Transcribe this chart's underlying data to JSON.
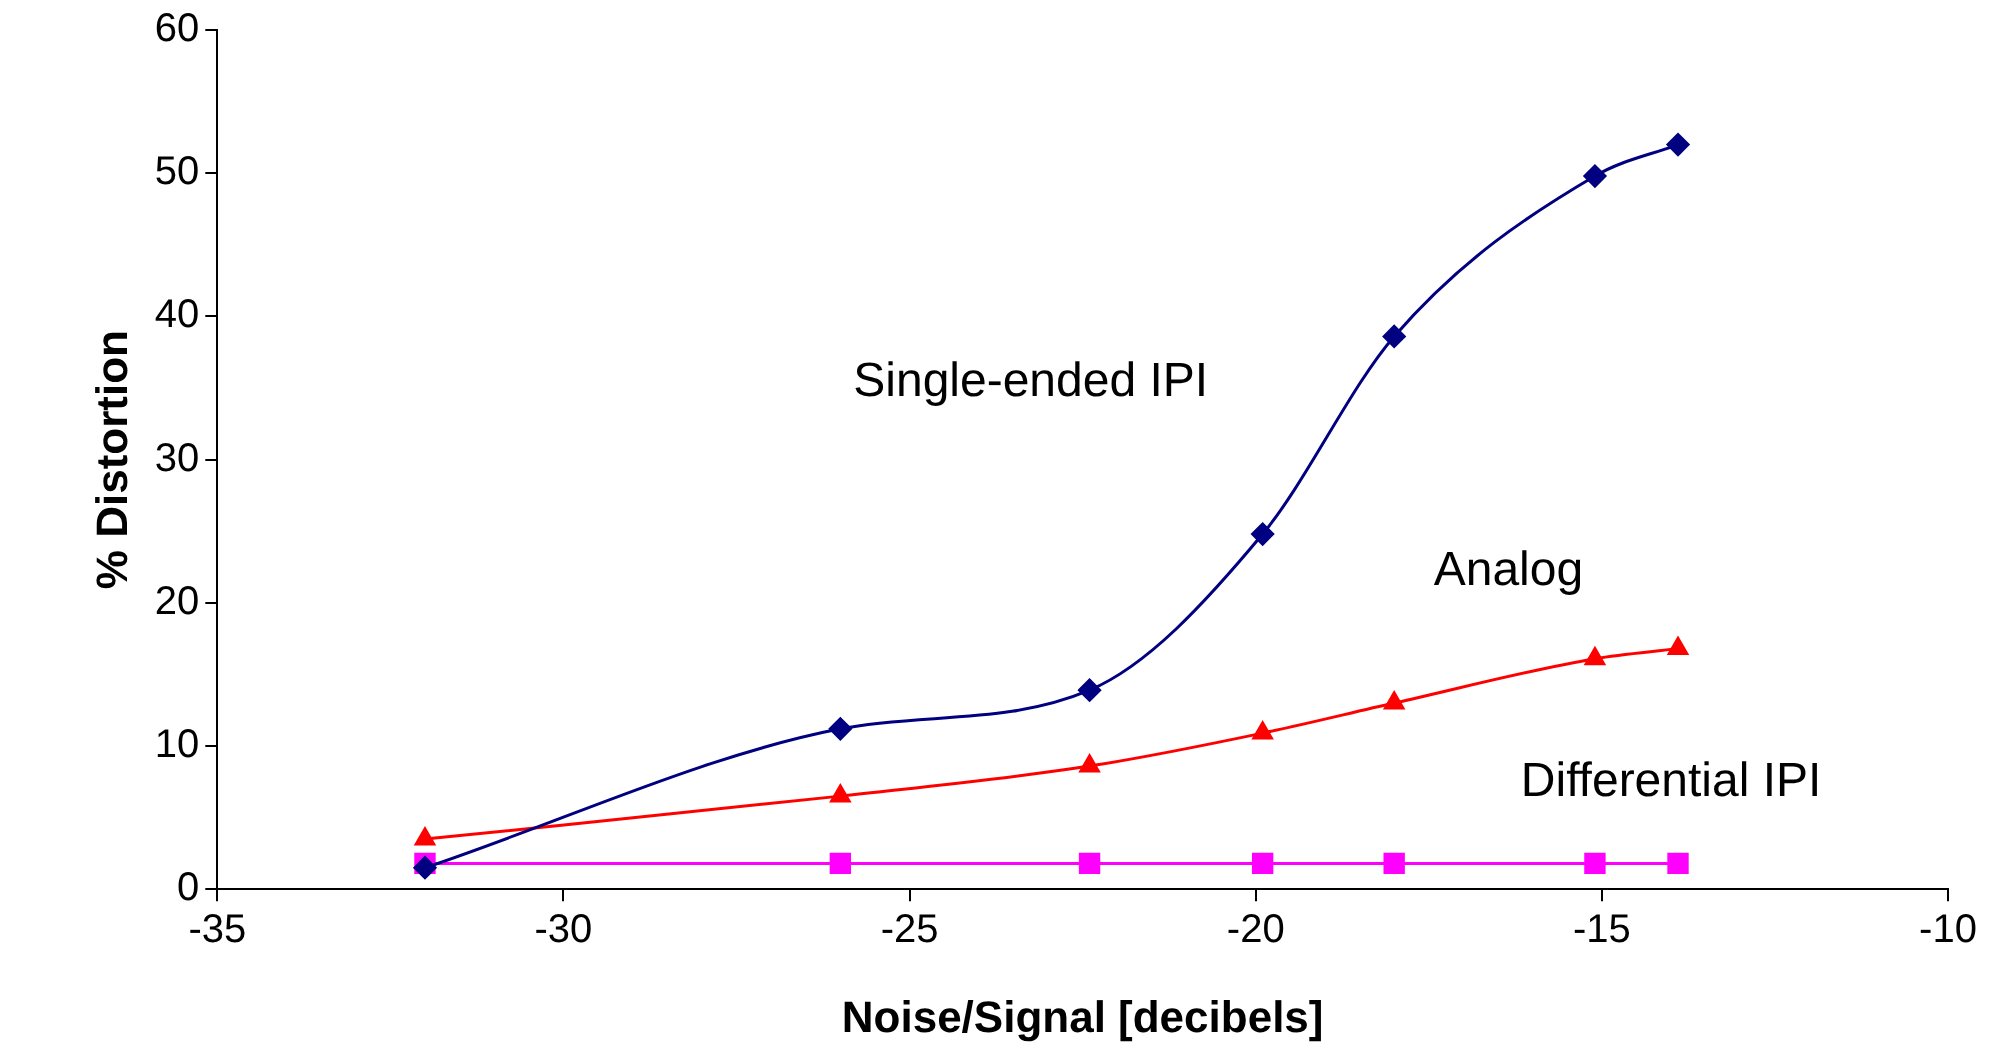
{
  "chart_data": {
    "type": "line",
    "xlabel": "Noise/Signal [decibels]",
    "ylabel": "% Distortion",
    "xlim": [
      -35,
      -10
    ],
    "xticks": [
      -35,
      -30,
      -25,
      -20,
      -15,
      -10
    ],
    "ylim": [
      0,
      60
    ],
    "yticks": [
      0,
      10,
      20,
      30,
      40,
      50,
      60
    ],
    "grid": false,
    "legend": false,
    "series": [
      {
        "name": "Single-ended IPI",
        "color": "#000080",
        "marker": "diamond",
        "x": [
          -32,
          -26,
          -22.4,
          -19.9,
          -18,
          -15.1,
          -13.9
        ],
        "values": [
          1.5,
          11.2,
          13.9,
          24.8,
          38.6,
          49.8,
          52
        ]
      },
      {
        "name": "Analog",
        "color": "#ff0000",
        "marker": "triangle",
        "x": [
          -32,
          -26,
          -22.4,
          -19.9,
          -18,
          -15.1,
          -13.9
        ],
        "values": [
          3.5,
          6.5,
          8.6,
          10.9,
          13,
          16.1,
          16.8
        ]
      },
      {
        "name": "Differential IPI",
        "color": "#ff00ff",
        "marker": "square",
        "x": [
          -32,
          -26,
          -22.4,
          -19.9,
          -18,
          -15.1,
          -13.9
        ],
        "values": [
          1.8,
          1.8,
          1.8,
          1.8,
          1.8,
          1.8,
          1.8
        ]
      }
    ]
  }
}
